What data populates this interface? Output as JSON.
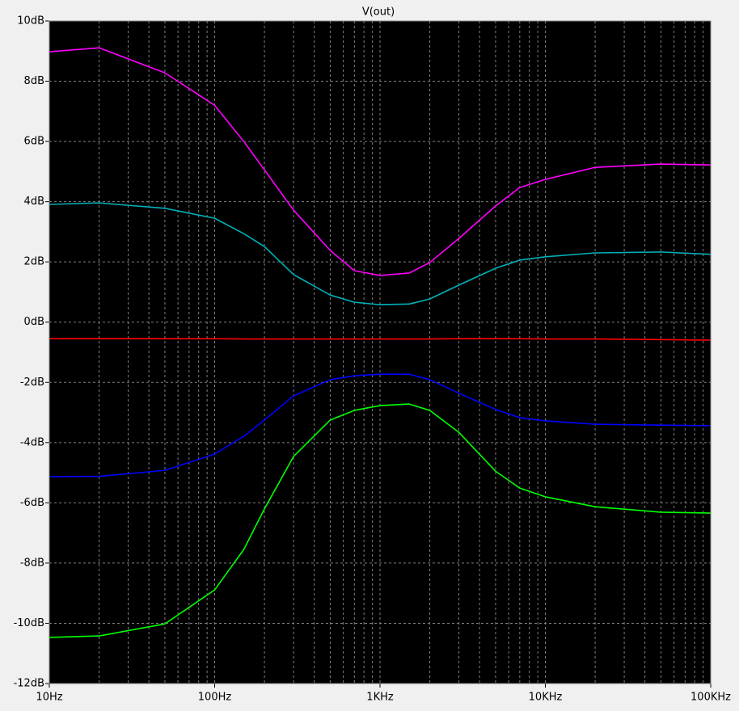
{
  "chart_data": {
    "type": "line",
    "title": "V(out)",
    "title_color": "#00ff00",
    "x": [
      10,
      20,
      50,
      100,
      150,
      200,
      300,
      500,
      700,
      1000,
      1500,
      2000,
      3000,
      5000,
      7000,
      10000,
      20000,
      50000,
      100000
    ],
    "xscale": "log",
    "xlim": [
      10,
      100000
    ],
    "xticks": [
      {
        "value": 10,
        "label": "10Hz"
      },
      {
        "value": 100,
        "label": "100Hz"
      },
      {
        "value": 1000,
        "label": "1KHz"
      },
      {
        "value": 10000,
        "label": "10KHz"
      },
      {
        "value": 100000,
        "label": "100KHz"
      }
    ],
    "ylim": [
      -12,
      10
    ],
    "yticks": [
      {
        "value": -12,
        "label": "-12dB"
      },
      {
        "value": -10,
        "label": "-10dB"
      },
      {
        "value": -8,
        "label": "-8dB"
      },
      {
        "value": -6,
        "label": "-6dB"
      },
      {
        "value": -4,
        "label": "-4dB"
      },
      {
        "value": -2,
        "label": "-2dB"
      },
      {
        "value": 0,
        "label": "0dB"
      },
      {
        "value": 2,
        "label": "2dB"
      },
      {
        "value": 4,
        "label": "4dB"
      },
      {
        "value": 6,
        "label": "6dB"
      },
      {
        "value": 8,
        "label": "8dB"
      },
      {
        "value": 10,
        "label": "10dB"
      }
    ],
    "grid": true,
    "series": [
      {
        "color": "#ff00ff",
        "values": [
          8.98,
          9.11,
          8.28,
          7.2,
          6.0,
          5.06,
          3.72,
          2.38,
          1.71,
          1.55,
          1.63,
          1.98,
          2.78,
          3.86,
          4.47,
          4.74,
          5.14,
          5.25,
          5.22
        ]
      },
      {
        "color": "#00b0b8",
        "values": [
          3.91,
          3.96,
          3.78,
          3.45,
          2.94,
          2.51,
          1.58,
          0.9,
          0.66,
          0.58,
          0.6,
          0.77,
          1.23,
          1.79,
          2.06,
          2.17,
          2.3,
          2.33,
          2.25
        ]
      },
      {
        "color": "#ff0000",
        "values": [
          -0.55,
          -0.55,
          -0.55,
          -0.55,
          -0.56,
          -0.56,
          -0.56,
          -0.56,
          -0.56,
          -0.56,
          -0.56,
          -0.56,
          -0.55,
          -0.55,
          -0.55,
          -0.56,
          -0.56,
          -0.58,
          -0.6
        ]
      },
      {
        "color": "#0000ff",
        "values": [
          -5.13,
          -5.12,
          -4.92,
          -4.38,
          -3.79,
          -3.25,
          -2.45,
          -1.91,
          -1.78,
          -1.73,
          -1.73,
          -1.91,
          -2.36,
          -2.9,
          -3.17,
          -3.28,
          -3.39,
          -3.42,
          -3.44
        ]
      },
      {
        "color": "#00ff00",
        "values": [
          -10.47,
          -10.42,
          -10.02,
          -8.89,
          -7.55,
          -6.2,
          -4.46,
          -3.25,
          -2.93,
          -2.77,
          -2.72,
          -2.93,
          -3.66,
          -4.95,
          -5.51,
          -5.8,
          -6.13,
          -6.31,
          -6.34
        ]
      }
    ]
  }
}
